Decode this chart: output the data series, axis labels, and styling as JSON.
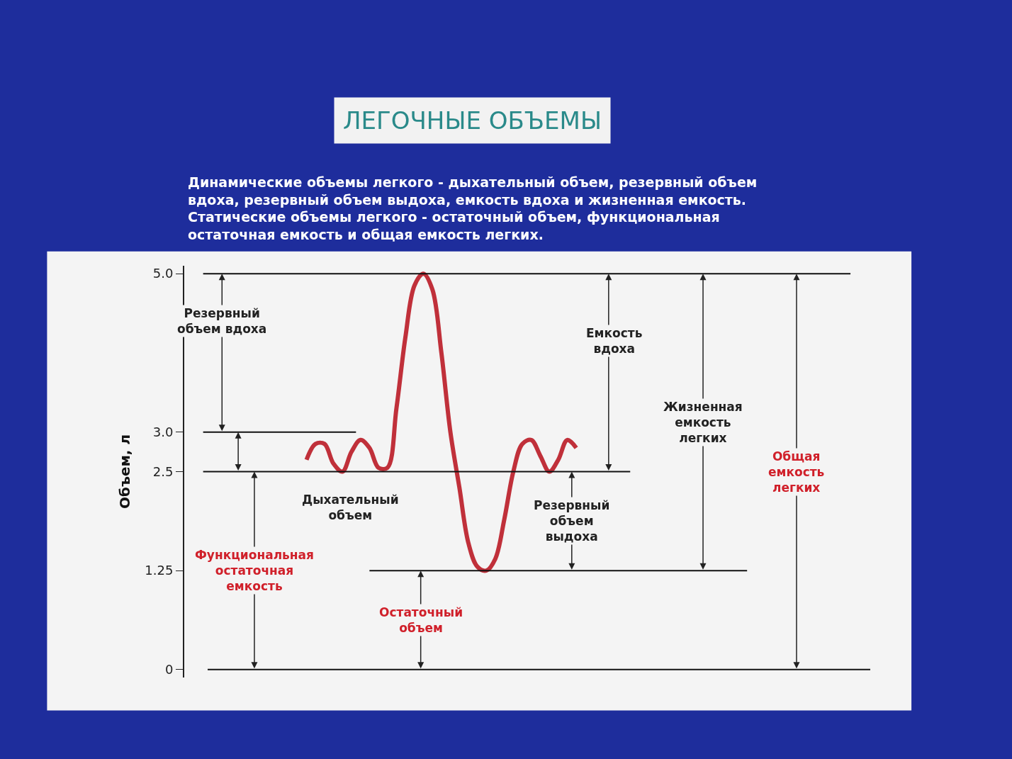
{
  "chart_data": {
    "type": "line",
    "title": "ЛЕГОЧНЫЕ ОБЪЕМЫ",
    "subtitle": "Динамические объемы легкого - дыхательный объем, резервный объем\nвдоха, резервный объем выдоха, емкость вдоха и жизненная емкость.\nСтатические объемы легкого - остаточный объем, функциональная\nостаточная емкость и общая емкость легких.",
    "ylabel": "Объем, л",
    "categories": [
      null,
      null,
      null,
      null,
      null,
      null,
      null,
      null,
      null,
      null,
      null,
      null,
      null,
      null,
      null,
      null,
      null,
      null,
      null,
      null,
      null,
      null,
      null,
      null,
      null,
      null,
      null,
      null,
      null,
      null,
      null
    ],
    "series": [
      {
        "color": "#c0303a",
        "values": [
          2.65,
          2.85,
          2.85,
          2.6,
          2.5,
          2.75,
          2.9,
          2.8,
          2.55,
          2.55,
          3.3,
          4.2,
          4.85,
          5.0,
          4.8,
          4.0,
          3.0,
          2.3,
          1.6,
          1.3,
          1.25,
          1.4,
          1.9,
          2.5,
          2.85,
          2.9,
          2.7,
          2.5,
          2.65,
          2.9,
          2.8
        ]
      }
    ],
    "ylim": [
      -0.1,
      5.1
    ],
    "yticks": [
      {
        "value": 0,
        "label": "0"
      },
      1.25,
      {
        "value": 2.5,
        "label": "2.5"
      },
      {
        "value": 3,
        "label": "3.0"
      },
      {
        "value": 5,
        "label": "5.0"
      }
    ],
    "ref_lines": [
      {
        "axis": "y",
        "value": 5,
        "color": "#111111"
      },
      {
        "axis": "y",
        "value": 3,
        "color": "#111111"
      },
      {
        "axis": "y",
        "value": 2.5,
        "color": "#111111"
      },
      {
        "axis": "y",
        "value": 1.25,
        "color": "#111111"
      },
      {
        "axis": "y",
        "value": 0,
        "color": "#111111"
      }
    ],
    "annotations": [
      "Резервный\nобъем вдоха",
      "Дыхательный\nобъем",
      "Функциональная\nостаточная\nемкость",
      "Остаточный\nобъем",
      "Емкость\nвдоха",
      "Резервный\nобъем\nвыдоха",
      "Жизненная\nемкость\nлегких",
      "Общая\nемкость\nлегких"
    ],
    "grid": false,
    "marker": "none",
    "line_style": "solid"
  }
}
